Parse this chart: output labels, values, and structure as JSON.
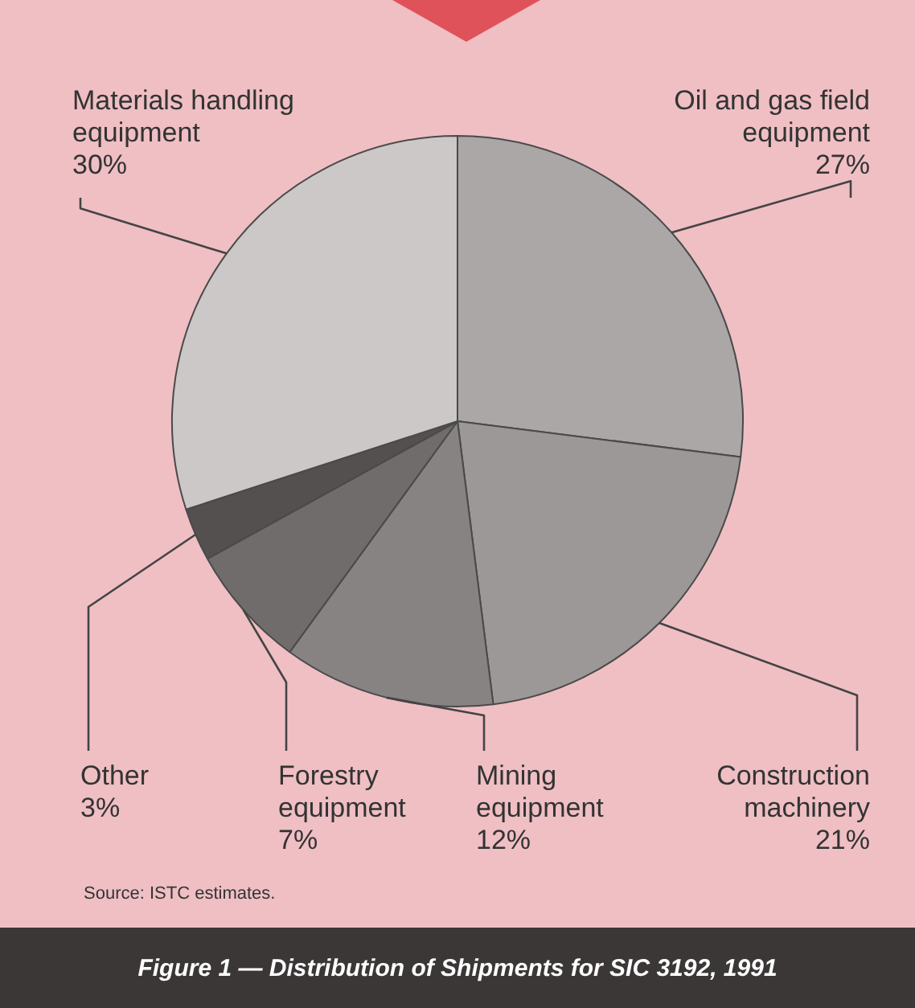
{
  "chart_data": {
    "type": "pie",
    "title": "Figure 1 — Distribution of Shipments for SIC 3192, 1991",
    "categories": [
      "Oil and gas field equipment",
      "Construction machinery",
      "Mining equipment",
      "Forestry equipment",
      "Other",
      "Materials handling equipment"
    ],
    "values": [
      27,
      21,
      12,
      7,
      3,
      30
    ],
    "value_labels": [
      "27%",
      "21%",
      "12%",
      "7%",
      "3%",
      "30%"
    ],
    "colors": [
      "#aba7a6",
      "#9c9897",
      "#878382",
      "#706c6c",
      "#545050",
      "#cbc8c7"
    ],
    "legend": false,
    "annotations": [
      "Source: ISTC estimates."
    ]
  }
}
